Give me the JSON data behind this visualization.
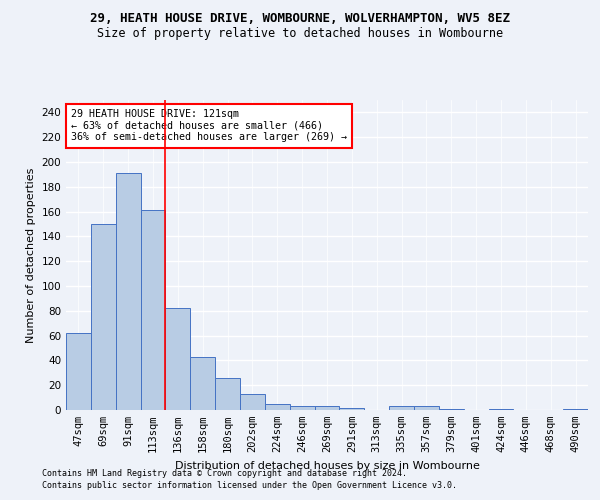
{
  "title": "29, HEATH HOUSE DRIVE, WOMBOURNE, WOLVERHAMPTON, WV5 8EZ",
  "subtitle": "Size of property relative to detached houses in Wombourne",
  "xlabel": "Distribution of detached houses by size in Wombourne",
  "ylabel": "Number of detached properties",
  "categories": [
    "47sqm",
    "69sqm",
    "91sqm",
    "113sqm",
    "136sqm",
    "158sqm",
    "180sqm",
    "202sqm",
    "224sqm",
    "246sqm",
    "269sqm",
    "291sqm",
    "313sqm",
    "335sqm",
    "357sqm",
    "379sqm",
    "401sqm",
    "424sqm",
    "446sqm",
    "468sqm",
    "490sqm"
  ],
  "values": [
    62,
    150,
    191,
    161,
    82,
    43,
    26,
    13,
    5,
    3,
    3,
    2,
    0,
    3,
    3,
    1,
    0,
    1,
    0,
    0,
    1
  ],
  "bar_color": "#b8cce4",
  "bar_edge_color": "#4472c4",
  "redline_index": 3,
  "annotation_text": "29 HEATH HOUSE DRIVE: 121sqm\n← 63% of detached houses are smaller (466)\n36% of semi-detached houses are larger (269) →",
  "annotation_box_color": "white",
  "annotation_box_edge_color": "red",
  "redline_color": "red",
  "ylim": [
    0,
    250
  ],
  "yticks": [
    0,
    20,
    40,
    60,
    80,
    100,
    120,
    140,
    160,
    180,
    200,
    220,
    240
  ],
  "footnote1": "Contains HM Land Registry data © Crown copyright and database right 2024.",
  "footnote2": "Contains public sector information licensed under the Open Government Licence v3.0.",
  "background_color": "#eef2f9",
  "grid_color": "#ffffff",
  "title_fontsize": 9,
  "subtitle_fontsize": 8.5,
  "axis_label_fontsize": 8,
  "tick_fontsize": 7.5,
  "footnote_fontsize": 6.0
}
